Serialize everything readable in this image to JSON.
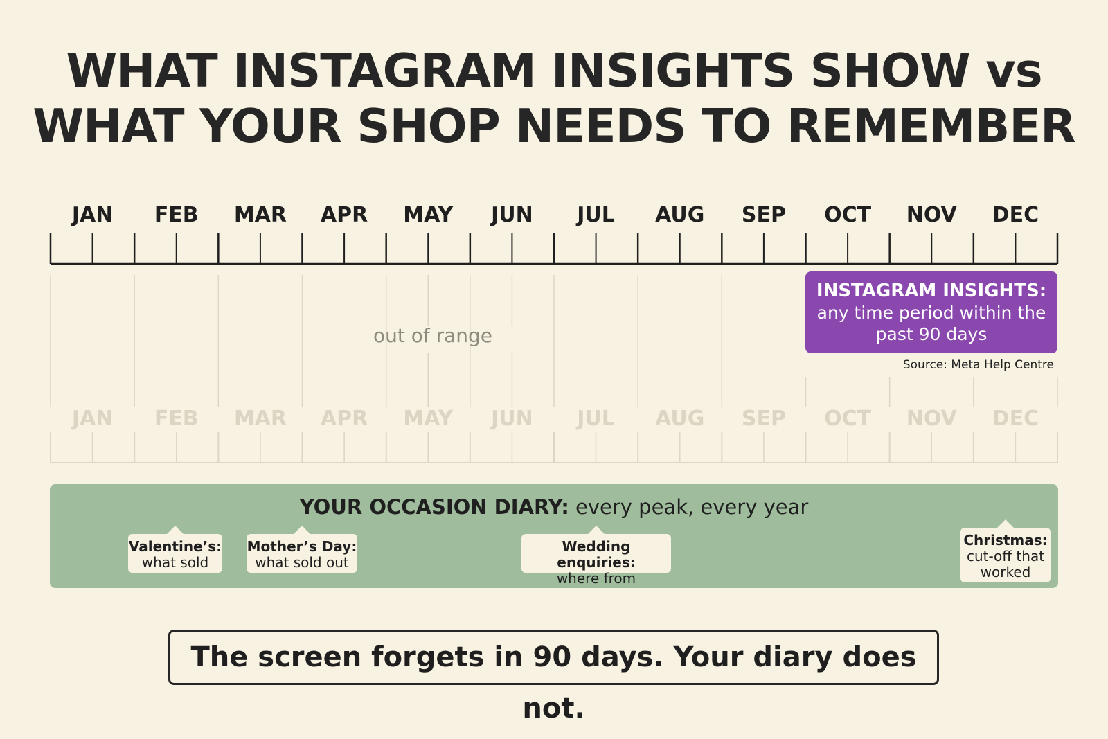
{
  "title": {
    "line1": "WHAT INSTAGRAM INSIGHTS SHOW vs",
    "line2": "WHAT YOUR SHOP NEEDS TO REMEMBER"
  },
  "months": [
    "JAN",
    "FEB",
    "MAR",
    "APR",
    "MAY",
    "JUN",
    "JUL",
    "AUG",
    "SEP",
    "OCT",
    "NOV",
    "DEC"
  ],
  "out_of_range_label": "out of range",
  "insights": {
    "title": "INSTAGRAM INSIGHTS:",
    "description": "any time period within the past 90 days",
    "source": "Source: Meta Help Centre"
  },
  "diary": {
    "heading_bold": "YOUR OCCASION DIARY:",
    "heading_rest": " every peak, every year",
    "notes": [
      {
        "title": "Valentine’s:",
        "text": "what sold"
      },
      {
        "title": "Mother’s Day:",
        "text": "what sold out"
      },
      {
        "title": "Wedding enquiries:",
        "text": "where from"
      },
      {
        "title": "Christmas:",
        "text": "cut-off that worked"
      }
    ]
  },
  "tagline": "The screen forgets in 90 days. Your diary does not.",
  "colors": {
    "background": "#f8f2e2",
    "insights": "#8a48ae",
    "diary": "#9fbc9c"
  }
}
